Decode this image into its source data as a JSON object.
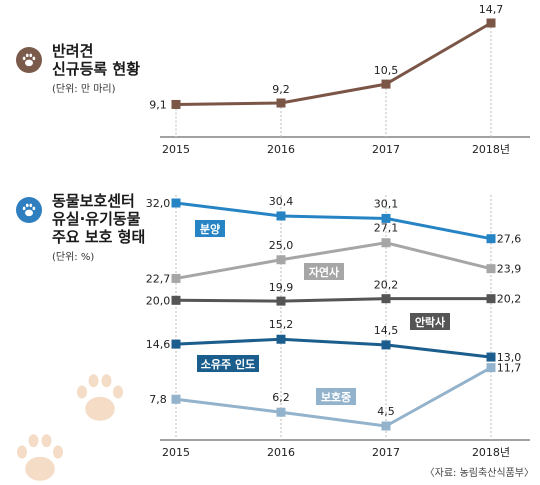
{
  "source": "〈자료: 농림축산식품부〉",
  "colors": {
    "bg_paw": "#f4dcc6",
    "badge1": "#7a5a4a",
    "badge2": "#2f7fc0"
  },
  "chart_data": [
    {
      "type": "line",
      "title": "반려견 신규등록 현황",
      "title_lines": [
        "반려견",
        "신규등록 현황"
      ],
      "unit": "(단위: 만 마리)",
      "categories": [
        "2015",
        "2016",
        "2017",
        "2018년"
      ],
      "series": [
        {
          "name": "",
          "values": [
            9.1,
            9.2,
            10.5,
            14.7
          ],
          "labels": [
            "9,1",
            "9,2",
            "10,5",
            "14,7"
          ],
          "color": "#7b5647"
        }
      ]
    },
    {
      "type": "line",
      "title": "동물보호센터 유실·유기동물 주요 보호 형태",
      "title_lines": [
        "동물보호센터",
        "유실·유기동물",
        "주요 보호 형태"
      ],
      "unit": "(단위: %)",
      "categories": [
        "2015",
        "2016",
        "2017",
        "2018년"
      ],
      "series": [
        {
          "name": "분양",
          "values": [
            32.0,
            30.4,
            30.1,
            27.6
          ],
          "labels": [
            "32,0",
            "30,4",
            "30,1",
            "27,6"
          ],
          "color": "#2684c4"
        },
        {
          "name": "자연사",
          "values": [
            22.7,
            25.0,
            27.1,
            23.9
          ],
          "labels": [
            "22,7",
            "25,0",
            "27,1",
            "23,9"
          ],
          "color": "#a6a6a6"
        },
        {
          "name": "안락사",
          "values": [
            20.0,
            19.9,
            20.2,
            20.2
          ],
          "labels": [
            "20,0",
            "19,9",
            "20,2",
            "20,2"
          ],
          "color": "#555555"
        },
        {
          "name": "소유주 인도",
          "values": [
            14.6,
            15.2,
            14.5,
            13.0
          ],
          "labels": [
            "14,6",
            "15,2",
            "14,5",
            "13,0"
          ],
          "color": "#1b5d8c"
        },
        {
          "name": "보호중",
          "values": [
            7.8,
            6.2,
            4.5,
            11.7
          ],
          "labels": [
            "7,8",
            "6,2",
            "4,5",
            "11,7"
          ],
          "color": "#93b3cc"
        }
      ]
    }
  ]
}
